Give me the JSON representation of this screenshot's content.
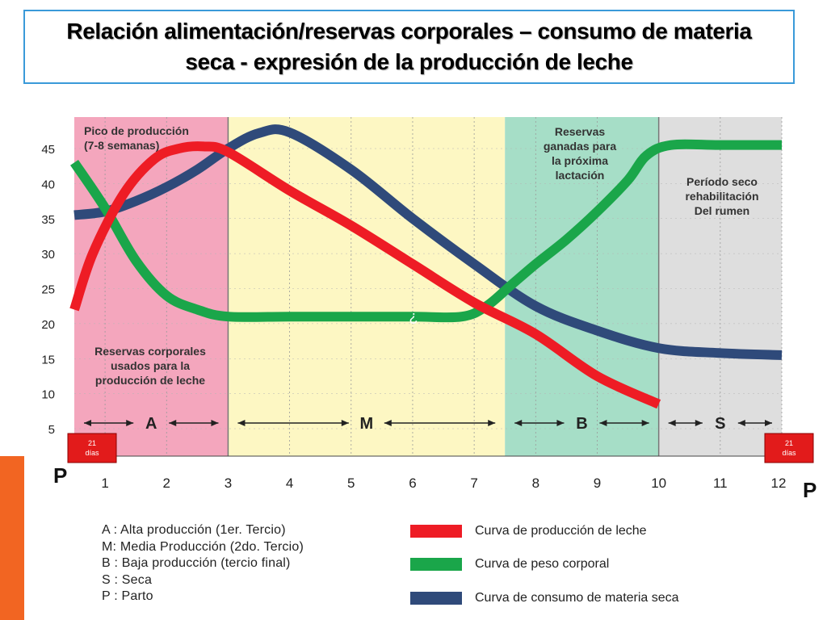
{
  "title": "Relación alimentación/reservas corporales – consumo de materia seca - expresión de la producción de leche",
  "chart_data": {
    "type": "line",
    "xlabel": "",
    "ylabel": "",
    "xlim": [
      0.5,
      12
    ],
    "ylim": [
      2,
      48
    ],
    "x_ticks": [
      "1",
      "2",
      "3",
      "4",
      "5",
      "6",
      "7",
      "8",
      "9",
      "10",
      "11",
      "12"
    ],
    "y_ticks": [
      5,
      10,
      15,
      20,
      25,
      30,
      35,
      40,
      45
    ],
    "series": [
      {
        "name": "Curva de producción de leche",
        "color": "#ee1c25",
        "x": [
          0.5,
          0.8,
          1.3,
          1.8,
          2.2,
          2.6,
          3.0,
          4.0,
          5.0,
          6.0,
          7.0,
          8.0,
          9.0,
          10.0
        ],
        "y": [
          22,
          30,
          38.5,
          43.5,
          45,
          45.3,
          44.5,
          39,
          34,
          28.5,
          23,
          18.5,
          12.5,
          8.5
        ]
      },
      {
        "name": "Curva de peso corporal",
        "color": "#1aa64a",
        "x": [
          0.5,
          1.0,
          1.5,
          2.0,
          2.5,
          3.0,
          4.0,
          5.0,
          6.0,
          6.8,
          7.2,
          7.6,
          8.0,
          8.5,
          9.0,
          9.5,
          9.8,
          10.2,
          11.0,
          12.0
        ],
        "y": [
          43,
          36.5,
          29,
          24,
          22,
          21,
          21,
          21,
          21,
          21,
          22.5,
          25.5,
          28.5,
          32,
          36,
          40.5,
          44,
          45.5,
          45.5,
          45.5
        ],
        "annotation": "¿"
      },
      {
        "name": "Curva de consumo de materia seca",
        "color": "#2f4a7a",
        "x": [
          0.5,
          1.0,
          1.5,
          2.0,
          2.5,
          3.0,
          3.5,
          4.0,
          5.0,
          6.0,
          7.0,
          8.0,
          9.0,
          10.0,
          11.0,
          12.0
        ],
        "y": [
          35.5,
          36,
          37.5,
          39.5,
          42,
          45,
          47.2,
          47.3,
          42,
          35,
          28.5,
          22.5,
          19,
          16.5,
          15.8,
          15.5
        ]
      }
    ],
    "bands": [
      {
        "letter": "A",
        "from": 0.5,
        "to": 3.0,
        "color": "#f4a6bd"
      },
      {
        "letter": "M",
        "from": 3.0,
        "to": 7.5,
        "color": "#fdf7c3"
      },
      {
        "letter": "B",
        "from": 7.5,
        "to": 10.0,
        "color": "#a6dec7"
      },
      {
        "letter": "S",
        "from": 10.0,
        "to": 12.0,
        "color": "#dedede"
      }
    ],
    "notes": {
      "peak": [
        "Pico de producción",
        "(7-8 semanas)"
      ],
      "reserves_used": [
        "Reservas corporales",
        "usados para la",
        "producción de leche"
      ],
      "reserves_gained": [
        "Reservas",
        "ganadas para",
        "la próxima",
        "lactación"
      ],
      "dry": [
        "Período seco",
        "rehabilitación",
        "Del rumen"
      ]
    },
    "p_label": "P",
    "day_box": [
      "21",
      "días"
    ]
  },
  "legend": {
    "keys": [
      "A : Alta producción (1er. Tercio)",
      "M: Media Producción (2do. Tercio)",
      "B : Baja producción (tercio final)",
      "S : Seca",
      "P : Parto"
    ]
  },
  "colors": {
    "accent": "#f26522",
    "title_border": "#3a9ad9"
  }
}
